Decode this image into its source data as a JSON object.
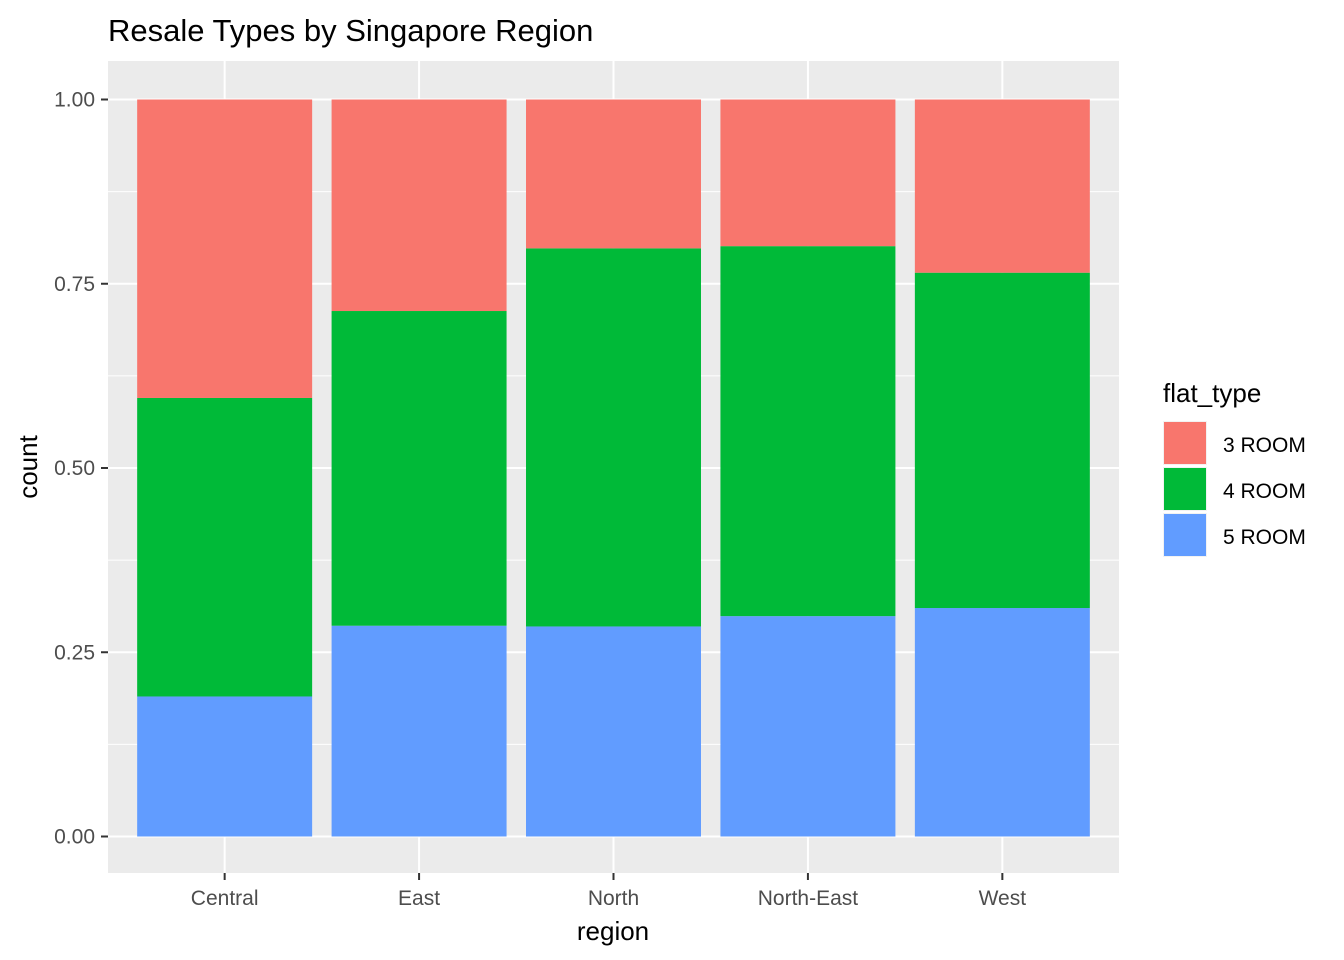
{
  "chart_data": {
    "type": "bar",
    "stacked": true,
    "title": "Resale Types by Singapore Region",
    "xlabel": "region",
    "ylabel": "count",
    "ylim": [
      0,
      1
    ],
    "y_ticks": [
      "0.00",
      "0.25",
      "0.50",
      "0.75",
      "1.00"
    ],
    "y_tick_values": [
      0,
      0.25,
      0.5,
      0.75,
      1.0
    ],
    "categories": [
      "Central",
      "East",
      "North",
      "North-East",
      "West"
    ],
    "series": [
      {
        "name": "5 ROOM",
        "color": "#619cff",
        "values": [
          0.19,
          0.286,
          0.285,
          0.299,
          0.31
        ]
      },
      {
        "name": "4 ROOM",
        "color": "#00ba38",
        "values": [
          0.405,
          0.427,
          0.513,
          0.502,
          0.455
        ]
      },
      {
        "name": "3 ROOM",
        "color": "#f8766d",
        "values": [
          0.405,
          0.287,
          0.202,
          0.199,
          0.235
        ]
      }
    ],
    "legend": {
      "title": "flat_type",
      "position": "right",
      "items": [
        {
          "label": "3 ROOM",
          "color": "#f8766d"
        },
        {
          "label": "4 ROOM",
          "color": "#00ba38"
        },
        {
          "label": "5 ROOM",
          "color": "#619cff"
        }
      ]
    },
    "panel_background": "#ebebeb",
    "grid": true
  }
}
